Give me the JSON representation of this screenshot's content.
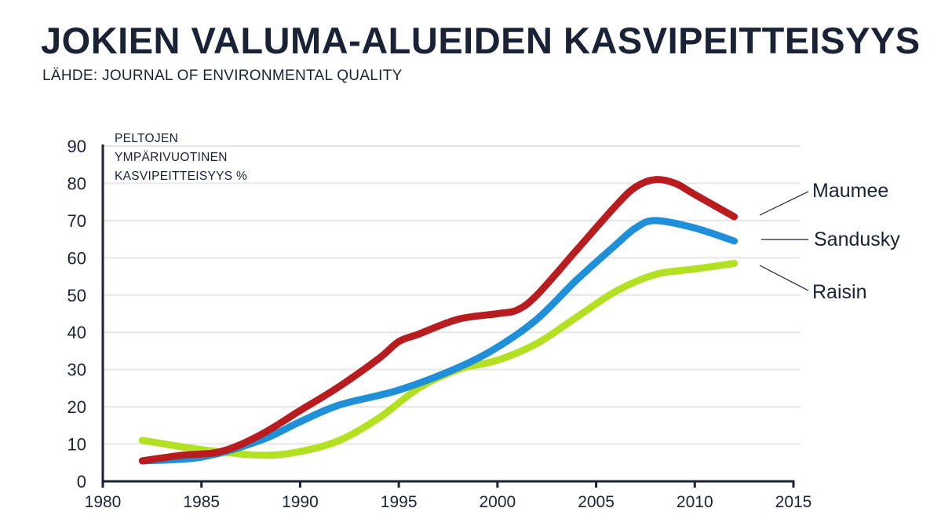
{
  "chart_data": {
    "type": "line",
    "title": "JOKIEN VALUMA-ALUEIDEN KASVIPEITTEISYYS",
    "subtitle": "LÄHDE:  JOURNAL OF ENVIRONMENTAL QUALITY",
    "ylabel_lines": [
      "PELTOJEN",
      "YMPÄRIVUOTINEN",
      "KASVIPEITTEISYYS %"
    ],
    "xlim": [
      1980,
      2015
    ],
    "ylim": [
      0,
      90
    ],
    "x_ticks": [
      1980,
      1985,
      1990,
      1995,
      2000,
      2005,
      2010,
      2015
    ],
    "y_ticks": [
      0,
      10,
      20,
      30,
      40,
      50,
      60,
      70,
      80,
      90
    ],
    "grid": "horizontal",
    "legend": "right",
    "series": [
      {
        "name": "Maumee",
        "color": "#b81c1f",
        "x": [
          1982,
          1984,
          1986,
          1988,
          1990,
          1992,
          1994,
          1995,
          1996,
          1998,
          2000,
          2001,
          2002,
          2004,
          2006,
          2007,
          2008,
          2009,
          2010,
          2012
        ],
        "y": [
          5.5,
          7,
          8,
          12.5,
          19,
          25.5,
          33,
          37.5,
          39.5,
          43.5,
          45,
          46,
          50,
          62,
          74,
          79,
          81,
          80,
          77,
          71
        ]
      },
      {
        "name": "Sandusky",
        "color": "#1e8fd8",
        "x": [
          1982,
          1985,
          1988,
          1990,
          1992,
          1995,
          1998,
          2000,
          2002,
          2004,
          2006,
          2007,
          2008,
          2010,
          2012
        ],
        "y": [
          5.5,
          6.5,
          11,
          16,
          20.5,
          24.5,
          30.5,
          36,
          43.5,
          54,
          63.5,
          68,
          70,
          68,
          64.5
        ]
      },
      {
        "name": "Raisin",
        "color": "#b3e021",
        "x": [
          1982,
          1985,
          1988,
          1990,
          1992,
          1994,
          1996,
          1998,
          2000,
          2002,
          2004,
          2006,
          2008,
          2010,
          2012
        ],
        "y": [
          11,
          8.5,
          7,
          8,
          11,
          17,
          25,
          30,
          32.5,
          37,
          44,
          51,
          55.5,
          57,
          58.5
        ]
      }
    ]
  }
}
